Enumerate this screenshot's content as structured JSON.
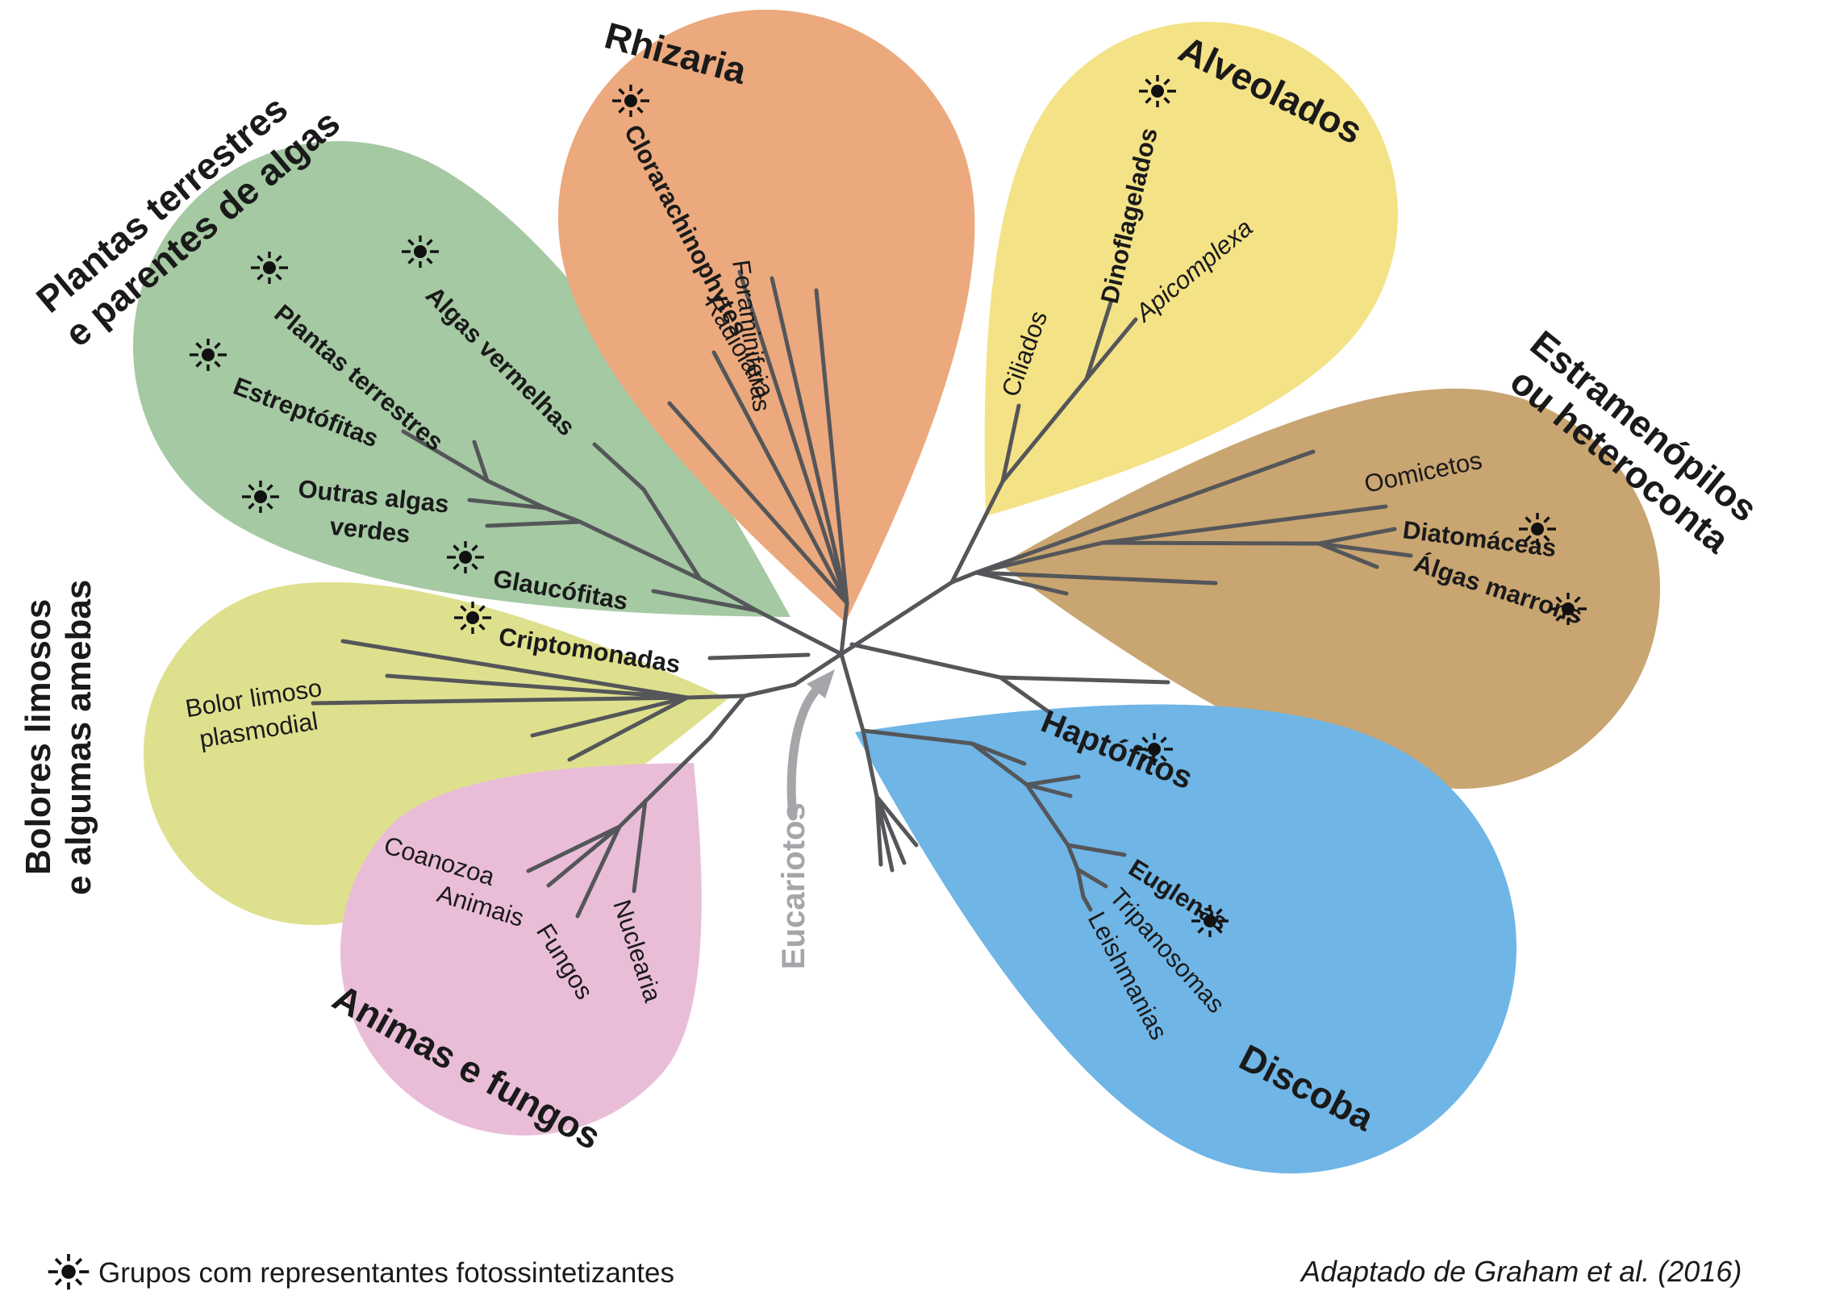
{
  "titles": {
    "plantas1": "Plantas terrestres",
    "plantas2": "e parentes de algas",
    "rhizaria": "Rhizaria",
    "alveolados": "Alveolados",
    "estram1": "Estramenópilos",
    "estram2": "ou heteroconta",
    "bolores1": "Bolores limosos",
    "bolores2": "e algumas amebas",
    "animais_fungos": "Animas e fungos",
    "discoba": "Discoba",
    "haptofitos": "Haptófitos",
    "eucariotos": "Eucariotos"
  },
  "taxa": {
    "plantas_terrestres": "Plantas terrestres",
    "algas_vermelhas": "Algas vermelhas",
    "estreptofitas": "Estreptófitas",
    "outras_algas1": "Outras algas",
    "outras_algas2": "verdes",
    "glaucofitas": "Glaucófitas",
    "criptomonadas": "Criptomonadas",
    "clorarachinophytes": "Clorarachinophytes",
    "radiolaria": "Radiolaria",
    "foraminiferas": "Foraminiferas",
    "ciliados": "Ciliados",
    "dinoflagelados": "Dinoflagelados",
    "apicomplexa": "Apicomplexa",
    "oomicetos": "Oomicetos",
    "diatomaceas": "Diatomáceas",
    "algas_marrons": "Álgas marrons",
    "euglenas": "Euglenas",
    "tripanosomas": "Tripanosomas",
    "leishmanias": "Leishmanias",
    "coanozoa": "Coanozoa",
    "animais": "Animais",
    "fungos": "Fungos",
    "nuclearia": "Nuclearia",
    "bolor1": "Bolor limoso",
    "bolor2": "plasmodial"
  },
  "legend_label": "Grupos com representantes fotossintetizantes",
  "attribution": "Adaptado de Graham et al. (2016)",
  "colors": {
    "green": "#a5c9a3",
    "orange": "#eba97d",
    "yellow": "#f4e286",
    "brown": "#c9a571",
    "yellowgreen": "#dfe08e",
    "pink": "#e9bdd8",
    "blue": "#6fb5e6",
    "line": "#545659",
    "gray": "#a4a6a9"
  }
}
